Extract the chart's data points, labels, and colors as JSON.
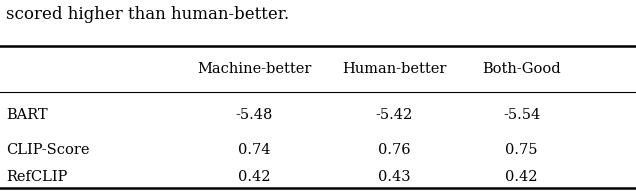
{
  "caption_top": "scored higher than human-better.",
  "col_headers": [
    "",
    "Machine-better",
    "Human-better",
    "Both-Good"
  ],
  "rows": [
    [
      "BART",
      "-5.48",
      "-5.42",
      "-5.54"
    ],
    [
      "CLIP-Score",
      "0.74",
      "0.76",
      "0.75"
    ],
    [
      "RefCLIP",
      "0.42",
      "0.43",
      "0.42"
    ]
  ],
  "font_size": 10.5,
  "header_font_size": 10.5,
  "caption_font_size": 12,
  "background_color": "#ffffff",
  "text_color": "#000000"
}
